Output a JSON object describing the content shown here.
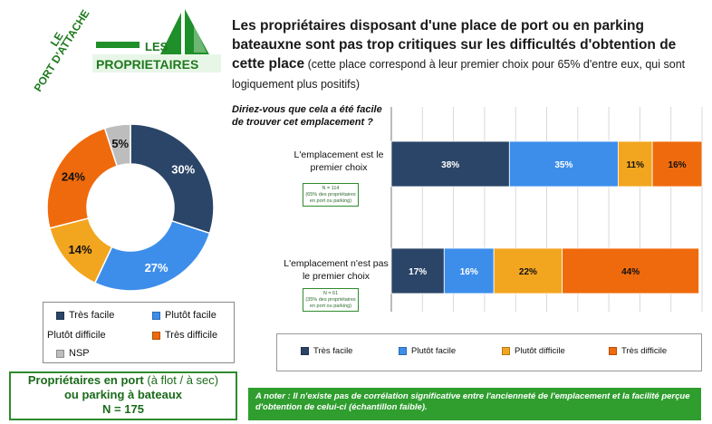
{
  "logo": {
    "line1": "LE",
    "line2": "PORT D'ATTACHE",
    "line3": "LES",
    "line4": "PROPRIETAIRES"
  },
  "title": {
    "bold": "Les propriétaires disposant d'une place de port ou en parking bateauxne sont pas trop critiques sur les difficultés d'obtention de cette place",
    "sub": " (cette place correspond à leur premier choix pour 65% d'entre eux, qui sont logiquement plus positifs)"
  },
  "question": "Diriez-vous que cela a été facile de trouver cet emplacement ?",
  "colors": {
    "tres_facile": "#2b4568",
    "plutot_facile": "#3d8eea",
    "plutot_difficile": "#f2a51f",
    "tres_difficile": "#ef6a0c",
    "nsp": "#bdbdbd",
    "green": "#2e8b2e"
  },
  "legend_left": {
    "items": [
      "Très facile",
      "Plutôt facile",
      "Plutôt difficile",
      "Très difficile",
      "NSP"
    ]
  },
  "sample_box": {
    "line1_bold": "Propriétaires en port",
    "line1_rest": " (à flot / à sec)",
    "line2": "ou parking à bateaux",
    "line3": "N = 175"
  },
  "rows": [
    {
      "label": "L'emplacement est le premier choix",
      "n": "N = 114",
      "n_note": "(65% des propriétaires en port ou parking)"
    },
    {
      "label": "L'emplacement n'est pas le premier choix",
      "n": "N = 61",
      "n_note": "(35% des propriétaires en port ou parking)"
    }
  ],
  "note": "A noter : Il n'existe pas de corrélation significative entre l'ancienneté de l'emplacement et la facilité perçue d'obtention de celui-ci (échantillon faible).",
  "chart_data": [
    {
      "type": "pie",
      "variant": "donut",
      "categories": [
        "Très facile",
        "Plutôt facile",
        "Plutôt difficile",
        "Très difficile",
        "NSP"
      ],
      "values": [
        30,
        27,
        14,
        24,
        5
      ],
      "labels": [
        "30%",
        "27%",
        "14%",
        "24%",
        "5%"
      ],
      "legend": "bottom"
    },
    {
      "type": "bar",
      "orientation": "horizontal",
      "stacked": true,
      "categories": [
        "L'emplacement est le premier choix",
        "L'emplacement n'est pas le premier choix"
      ],
      "series": [
        {
          "name": "Très facile",
          "values": [
            38,
            17
          ],
          "labels": [
            "38%",
            "17%"
          ]
        },
        {
          "name": "Plutôt facile",
          "values": [
            35,
            16
          ],
          "labels": [
            "35%",
            "16%"
          ]
        },
        {
          "name": "Plutôt difficile",
          "values": [
            11,
            22
          ],
          "labels": [
            "11%",
            "22%"
          ]
        },
        {
          "name": "Très difficile",
          "values": [
            16,
            44
          ],
          "labels": [
            "16%",
            "44%"
          ]
        }
      ],
      "xlim": [
        0,
        100
      ],
      "grid": true,
      "legend": "bottom"
    }
  ]
}
